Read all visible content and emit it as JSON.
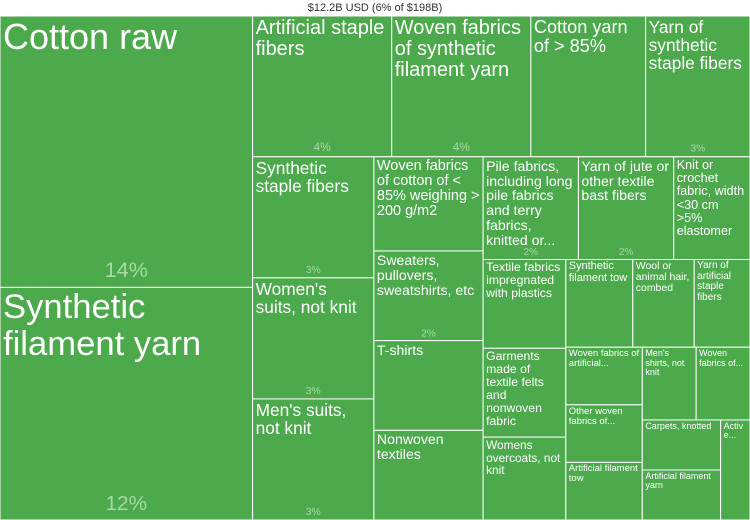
{
  "chart_data": {
    "type": "treemap",
    "title": "$12.2B USD (6% of $198B)",
    "color": "#4caa4c",
    "label_color": "#a6d9a6",
    "items": [
      {
        "name": "Cotton raw",
        "value": 14,
        "value_label": "14%"
      },
      {
        "name": "Synthetic filament yarn",
        "value": 12,
        "value_label": "12%"
      },
      {
        "name": "Artificial staple fibers",
        "value": 4,
        "value_label": "4%"
      },
      {
        "name": "Woven fabrics of synthetic filament yarn",
        "value": 4,
        "value_label": "4%"
      },
      {
        "name": "Cotton yarn of > 85%",
        "value": 3.3
      },
      {
        "name": "Yarn of synthetic staple fibers",
        "value": 3,
        "value_label": "3%"
      },
      {
        "name": "Synthetic staple fibers",
        "value": 3,
        "value_label": "3%"
      },
      {
        "name": "Women's suits, not knit",
        "value": 3,
        "value_label": "3%"
      },
      {
        "name": "Men's suits, not knit",
        "value": 3,
        "value_label": "3%"
      },
      {
        "name": "Woven fabrics of cotton of < 85% weighing > 200 g/m2",
        "value": 2.1
      },
      {
        "name": "Sweaters, pullovers, sweatshirts, etc",
        "value": 2,
        "value_label": "2%"
      },
      {
        "name": "T-shirts",
        "value": 2
      },
      {
        "name": "Nonwoven textiles",
        "value": 2
      },
      {
        "name": "Pile fabrics, including long pile fabrics and terry fabrics, knitted or...",
        "value": 2,
        "value_label": "2%"
      },
      {
        "name": "Yarn of jute or other textile bast fibers",
        "value": 2,
        "value_label": "2%"
      },
      {
        "name": "Knit or crochet fabric, width <30 cm >5% elastomer",
        "value": 1.6
      },
      {
        "name": "Textile fabrics impregnated with plastics",
        "value": 1.5
      },
      {
        "name": "Garments made of textile felts and nonwoven fabric",
        "value": 1.5
      },
      {
        "name": "Womens overcoats, not knit",
        "value": 1.4
      },
      {
        "name": "Synthetic filament tow",
        "value": 1.2
      },
      {
        "name": "Wool or animal hair, combed",
        "value": 1.1
      },
      {
        "name": "Yarn of artificial staple fibers",
        "value": 1.0
      },
      {
        "name": "Woven fabrics of artificial...",
        "value": 0.9
      },
      {
        "name": "Other woven fabrics of...",
        "value": 0.9
      },
      {
        "name": "Artificial filament tow",
        "value": 0.9
      },
      {
        "name": "Men's shirts, not knit",
        "value": 0.8
      },
      {
        "name": "Woven fabrics of...",
        "value": 0.8
      },
      {
        "name": "Carpets, knotted",
        "value": 0.8
      },
      {
        "name": "Artificial filament yarn",
        "value": 0.8
      },
      {
        "name": "Active...",
        "value": 0.6
      }
    ]
  }
}
